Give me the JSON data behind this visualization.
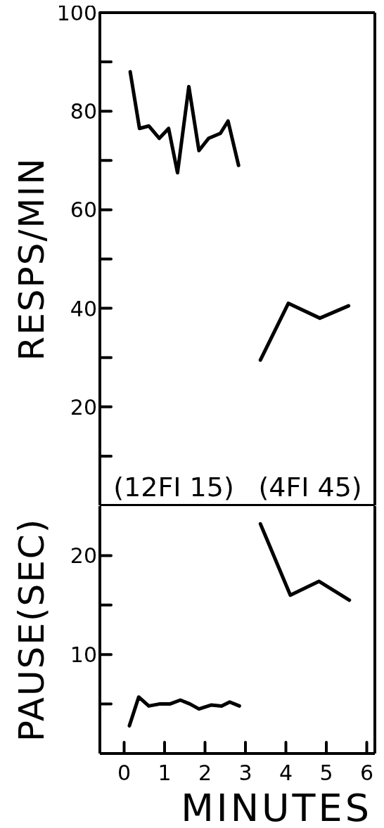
{
  "chart_data": [
    {
      "type": "line",
      "ylabel": "RESPS/MIN",
      "xlim": [
        -0.6,
        6.2
      ],
      "ylim": [
        0,
        100
      ],
      "yticks": [
        {
          "value": 10,
          "label": null
        },
        20,
        {
          "value": 30,
          "label": null
        },
        40,
        {
          "value": 50,
          "label": null
        },
        60,
        {
          "value": 70,
          "label": null
        },
        80,
        {
          "value": 90,
          "label": null
        },
        100
      ],
      "tick_labels": "y",
      "marker": "none",
      "line_style": "solid",
      "annotations": [
        "(12FI 15)",
        "(4FI 45)"
      ],
      "series": [
        {
          "color": "#000000",
          "x": [
            0.15,
            0.38,
            0.61,
            0.87,
            1.1,
            1.32,
            1.6,
            1.85,
            2.09,
            2.38,
            2.57,
            2.83
          ],
          "values": [
            88,
            76.5,
            77,
            74.5,
            76.5,
            67.5,
            85,
            72,
            74.5,
            75.5,
            78,
            69
          ]
        },
        {
          "color": "#000000",
          "x": [
            3.37,
            4.06,
            4.84,
            5.55
          ],
          "values": [
            29.5,
            41,
            38,
            40.5
          ]
        }
      ]
    },
    {
      "type": "line",
      "xlabel": "MINUTES",
      "ylabel": "PAUSE(SEC)",
      "xlim": [
        -0.6,
        6.2
      ],
      "xticks": [
        0,
        1,
        2,
        3,
        4,
        5,
        6
      ],
      "ylim": [
        0,
        25
      ],
      "yticks": [
        {
          "value": 5,
          "label": null
        },
        10,
        {
          "value": 15,
          "label": null
        },
        20
      ],
      "marker": "none",
      "line_style": "solid",
      "series": [
        {
          "color": "#000000",
          "x": [
            0.13,
            0.36,
            0.61,
            0.87,
            1.13,
            1.39,
            1.63,
            1.85,
            2.15,
            2.41,
            2.61,
            2.85
          ],
          "values": [
            2.8,
            5.7,
            4.8,
            5,
            5,
            5.4,
            5,
            4.5,
            4.9,
            4.8,
            5.2,
            4.8
          ]
        },
        {
          "color": "#000000",
          "x": [
            3.37,
            4.11,
            4.82,
            5.57
          ],
          "values": [
            23.2,
            16,
            17.4,
            15.5
          ]
        }
      ]
    }
  ]
}
